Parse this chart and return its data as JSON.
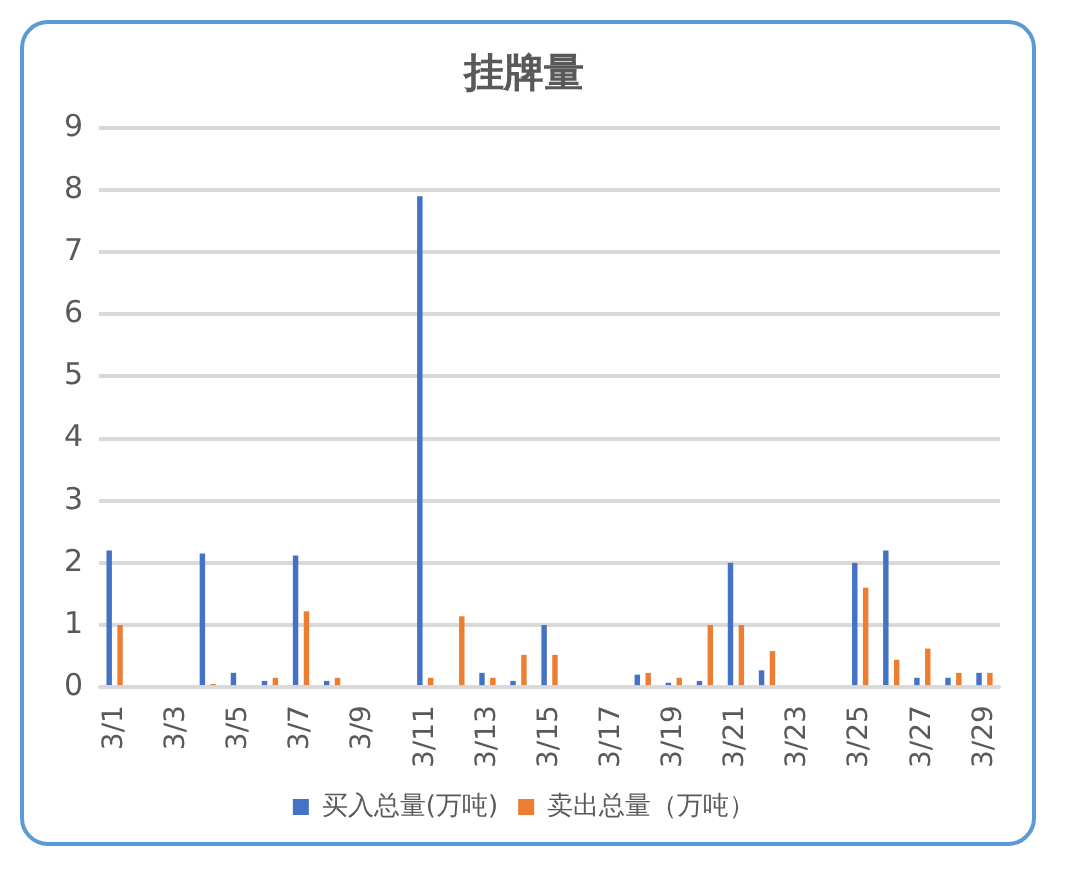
{
  "chart_data": {
    "type": "bar",
    "title": "挂牌量",
    "categories": [
      "3/1",
      null,
      "3/3",
      null,
      "3/5",
      null,
      "3/7",
      null,
      "3/9",
      null,
      "3/11",
      null,
      "3/13",
      null,
      "3/15",
      null,
      "3/17",
      null,
      "3/19",
      null,
      "3/21",
      null,
      "3/23",
      null,
      "3/25",
      null,
      "3/27",
      null,
      "3/29"
    ],
    "series": [
      {
        "name": "买入总量(万吨)",
        "color": "#4472c4",
        "values": [
          2.2,
          null,
          null,
          2.15,
          0.23,
          0.1,
          2.12,
          0.1,
          null,
          null,
          7.9,
          null,
          0.23,
          0.1,
          1.0,
          null,
          null,
          0.2,
          0.07,
          0.1,
          2.0,
          0.27,
          null,
          null,
          2.0,
          2.2,
          0.15,
          0.15,
          0.23
        ]
      },
      {
        "name": "卖出总量（万吨）",
        "color": "#ed7d31",
        "values": [
          1.0,
          null,
          null,
          0.05,
          null,
          0.15,
          1.22,
          0.15,
          null,
          null,
          0.15,
          1.14,
          0.15,
          0.52,
          0.52,
          null,
          null,
          0.23,
          0.15,
          1.0,
          1.0,
          0.58,
          null,
          null,
          1.6,
          0.44,
          0.62,
          0.23,
          0.23
        ]
      }
    ],
    "ylim": [
      0,
      9
    ],
    "yticks": [
      0,
      1,
      2,
      3,
      4,
      5,
      6,
      7,
      8,
      9
    ],
    "grid": "y",
    "legend": "bottom"
  }
}
